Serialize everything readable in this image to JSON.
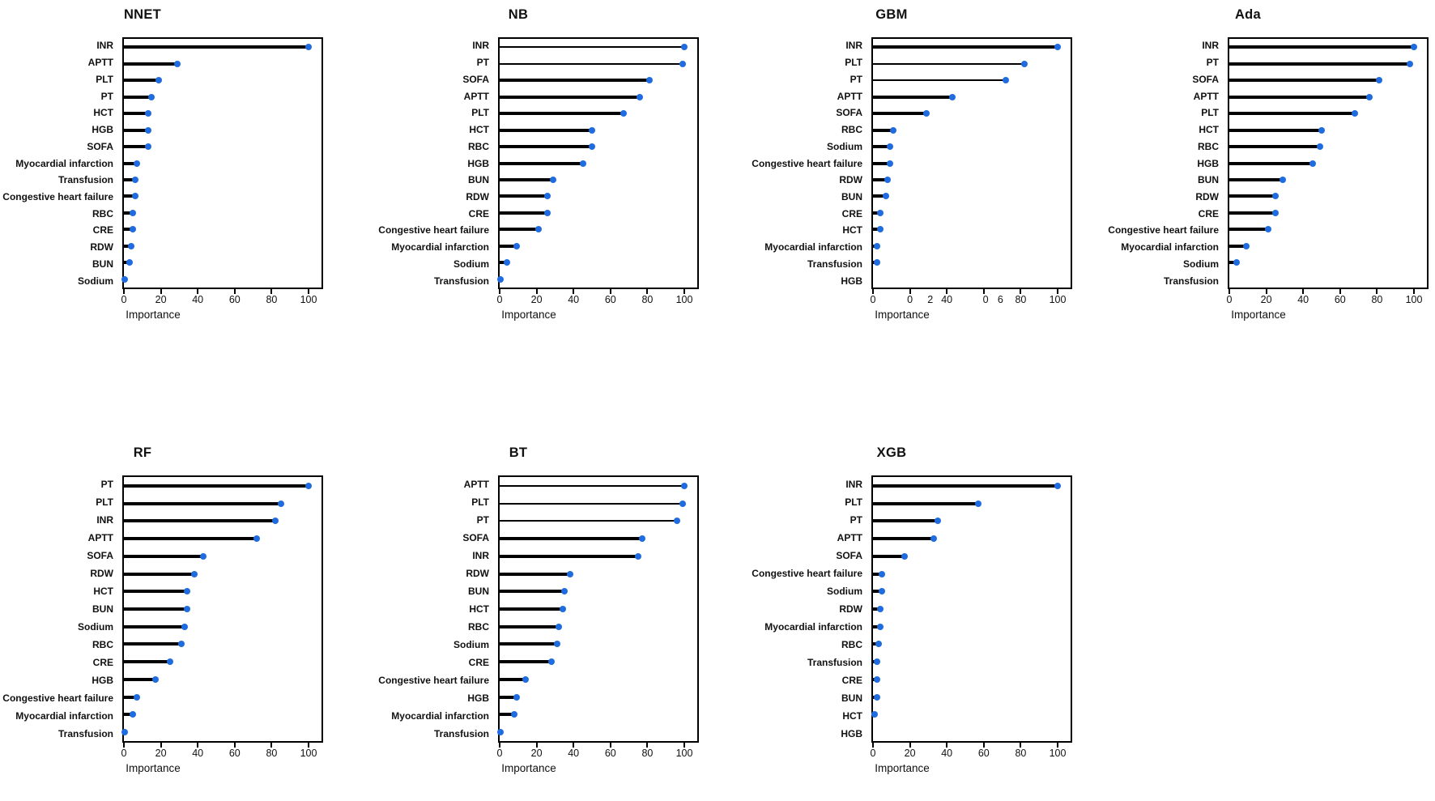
{
  "figure": {
    "xlabel": "Importance",
    "dot_color": "#1f6be0",
    "stem_color": "#000000",
    "background": "#ffffff"
  },
  "chart_data": [
    {
      "type": "bar",
      "style": "lollipop",
      "title": "NNET",
      "xlabel": "Importance",
      "xlim": [
        0,
        107
      ],
      "xticks": [
        0,
        20,
        40,
        60,
        80,
        100
      ],
      "grid": {
        "row": 0,
        "col": 0
      },
      "items": [
        {
          "label": "INR",
          "value": 100
        },
        {
          "label": "APTT",
          "value": 29
        },
        {
          "label": "PLT",
          "value": 19
        },
        {
          "label": "PT",
          "value": 15
        },
        {
          "label": "HCT",
          "value": 13
        },
        {
          "label": "HGB",
          "value": 13
        },
        {
          "label": "SOFA",
          "value": 13
        },
        {
          "label": "Myocardial infarction",
          "value": 7
        },
        {
          "label": "Transfusion",
          "value": 6
        },
        {
          "label": "Congestive heart failure",
          "value": 6
        },
        {
          "label": "RBC",
          "value": 5
        },
        {
          "label": "CRE",
          "value": 5
        },
        {
          "label": "RDW",
          "value": 4
        },
        {
          "label": "BUN",
          "value": 3
        },
        {
          "label": "Sodium",
          "value": 0.5
        }
      ]
    },
    {
      "type": "bar",
      "style": "lollipop",
      "title": "NB",
      "xlabel": "Importance",
      "xlim": [
        0,
        107
      ],
      "xticks": [
        0,
        20,
        40,
        60,
        80,
        100
      ],
      "grid": {
        "row": 0,
        "col": 1
      },
      "items": [
        {
          "label": "INR",
          "value": 100,
          "thin": true
        },
        {
          "label": "PT",
          "value": 99,
          "thin": true
        },
        {
          "label": "SOFA",
          "value": 81
        },
        {
          "label": "APTT",
          "value": 76
        },
        {
          "label": "PLT",
          "value": 67
        },
        {
          "label": "HCT",
          "value": 50
        },
        {
          "label": "RBC",
          "value": 50
        },
        {
          "label": "HGB",
          "value": 45
        },
        {
          "label": "BUN",
          "value": 29
        },
        {
          "label": "RDW",
          "value": 26
        },
        {
          "label": "CRE",
          "value": 26
        },
        {
          "label": "Congestive heart failure",
          "value": 21
        },
        {
          "label": "Myocardial infarction",
          "value": 9
        },
        {
          "label": "Sodium",
          "value": 4
        },
        {
          "label": "Transfusion",
          "value": 0.5
        }
      ]
    },
    {
      "type": "bar",
      "style": "lollipop",
      "title": "GBM",
      "xlabel": "Importance",
      "xlim": [
        0,
        107
      ],
      "xticks": [
        0,
        20,
        40,
        60,
        80,
        100
      ],
      "tick_labels": [
        {
          "pos": 0,
          "text": "0"
        },
        {
          "pos": 20,
          "text": "0"
        },
        {
          "pos": 31,
          "text": "2"
        },
        {
          "pos": 40,
          "text": "40"
        },
        {
          "pos": 61,
          "text": "0"
        },
        {
          "pos": 69,
          "text": "6"
        },
        {
          "pos": 80,
          "text": "80"
        },
        {
          "pos": 100,
          "text": "100"
        }
      ],
      "grid": {
        "row": 0,
        "col": 2
      },
      "items": [
        {
          "label": "INR",
          "value": 100
        },
        {
          "label": "PLT",
          "value": 82,
          "thin": true
        },
        {
          "label": "PT",
          "value": 72,
          "thin": true
        },
        {
          "label": "APTT",
          "value": 43
        },
        {
          "label": "SOFA",
          "value": 29
        },
        {
          "label": "RBC",
          "value": 11
        },
        {
          "label": "Sodium",
          "value": 9
        },
        {
          "label": "Congestive heart failure",
          "value": 9
        },
        {
          "label": "RDW",
          "value": 8
        },
        {
          "label": "BUN",
          "value": 7
        },
        {
          "label": "CRE",
          "value": 4
        },
        {
          "label": "HCT",
          "value": 4
        },
        {
          "label": "Myocardial infarction",
          "value": 2
        },
        {
          "label": "Transfusion",
          "value": 2
        },
        {
          "label": "HGB",
          "value": 0
        }
      ]
    },
    {
      "type": "bar",
      "style": "lollipop",
      "title": "Ada",
      "xlabel": "Importance",
      "xlim": [
        0,
        107
      ],
      "xticks": [
        0,
        20,
        40,
        60,
        80,
        100
      ],
      "grid": {
        "row": 0,
        "col": 3
      },
      "items": [
        {
          "label": "INR",
          "value": 100
        },
        {
          "label": "PT",
          "value": 98
        },
        {
          "label": "SOFA",
          "value": 81
        },
        {
          "label": "APTT",
          "value": 76
        },
        {
          "label": "PLT",
          "value": 68
        },
        {
          "label": "HCT",
          "value": 50
        },
        {
          "label": "RBC",
          "value": 49
        },
        {
          "label": "HGB",
          "value": 45
        },
        {
          "label": "BUN",
          "value": 29
        },
        {
          "label": "RDW",
          "value": 25
        },
        {
          "label": "CRE",
          "value": 25
        },
        {
          "label": "Congestive heart failure",
          "value": 21
        },
        {
          "label": "Myocardial infarction",
          "value": 9
        },
        {
          "label": "Sodium",
          "value": 4
        },
        {
          "label": "Transfusion",
          "value": 0
        }
      ]
    },
    {
      "type": "bar",
      "style": "lollipop",
      "title": "RF",
      "xlabel": "Importance",
      "xlim": [
        0,
        107
      ],
      "xticks": [
        0,
        20,
        40,
        60,
        80,
        100
      ],
      "grid": {
        "row": 1,
        "col": 0
      },
      "items": [
        {
          "label": "PT",
          "value": 100
        },
        {
          "label": "PLT",
          "value": 85
        },
        {
          "label": "INR",
          "value": 82
        },
        {
          "label": "APTT",
          "value": 72
        },
        {
          "label": "SOFA",
          "value": 43
        },
        {
          "label": "RDW",
          "value": 38
        },
        {
          "label": "HCT",
          "value": 34
        },
        {
          "label": "BUN",
          "value": 34
        },
        {
          "label": "Sodium",
          "value": 33
        },
        {
          "label": "RBC",
          "value": 31
        },
        {
          "label": "CRE",
          "value": 25
        },
        {
          "label": "HGB",
          "value": 17
        },
        {
          "label": "Congestive heart failure",
          "value": 7
        },
        {
          "label": "Myocardial infarction",
          "value": 5
        },
        {
          "label": "Transfusion",
          "value": 0.5
        }
      ]
    },
    {
      "type": "bar",
      "style": "lollipop",
      "title": "BT",
      "xlabel": "Importance",
      "xlim": [
        0,
        107
      ],
      "xticks": [
        0,
        20,
        40,
        60,
        80,
        100
      ],
      "grid": {
        "row": 1,
        "col": 1
      },
      "items": [
        {
          "label": "APTT",
          "value": 100,
          "thin": true
        },
        {
          "label": "PLT",
          "value": 99,
          "thin": true
        },
        {
          "label": "PT",
          "value": 96,
          "thin": true
        },
        {
          "label": "SOFA",
          "value": 77
        },
        {
          "label": "INR",
          "value": 75
        },
        {
          "label": "RDW",
          "value": 38
        },
        {
          "label": "BUN",
          "value": 35
        },
        {
          "label": "HCT",
          "value": 34
        },
        {
          "label": "RBC",
          "value": 32
        },
        {
          "label": "Sodium",
          "value": 31
        },
        {
          "label": "CRE",
          "value": 28
        },
        {
          "label": "Congestive heart failure",
          "value": 14
        },
        {
          "label": "HGB",
          "value": 9
        },
        {
          "label": "Myocardial infarction",
          "value": 8
        },
        {
          "label": "Transfusion",
          "value": 0.5
        }
      ]
    },
    {
      "type": "bar",
      "style": "lollipop",
      "title": "XGB",
      "xlabel": "Importance",
      "xlim": [
        0,
        107
      ],
      "xticks": [
        0,
        20,
        40,
        60,
        80,
        100
      ],
      "grid": {
        "row": 1,
        "col": 2
      },
      "items": [
        {
          "label": "INR",
          "value": 100
        },
        {
          "label": "PLT",
          "value": 57
        },
        {
          "label": "PT",
          "value": 35
        },
        {
          "label": "APTT",
          "value": 33
        },
        {
          "label": "SOFA",
          "value": 17
        },
        {
          "label": "Congestive heart failure",
          "value": 5
        },
        {
          "label": "Sodium",
          "value": 5
        },
        {
          "label": "RDW",
          "value": 4
        },
        {
          "label": "Myocardial infarction",
          "value": 4
        },
        {
          "label": "RBC",
          "value": 3
        },
        {
          "label": "Transfusion",
          "value": 2
        },
        {
          "label": "CRE",
          "value": 2
        },
        {
          "label": "BUN",
          "value": 2
        },
        {
          "label": "HCT",
          "value": 1
        },
        {
          "label": "HGB",
          "value": 0
        }
      ]
    }
  ]
}
